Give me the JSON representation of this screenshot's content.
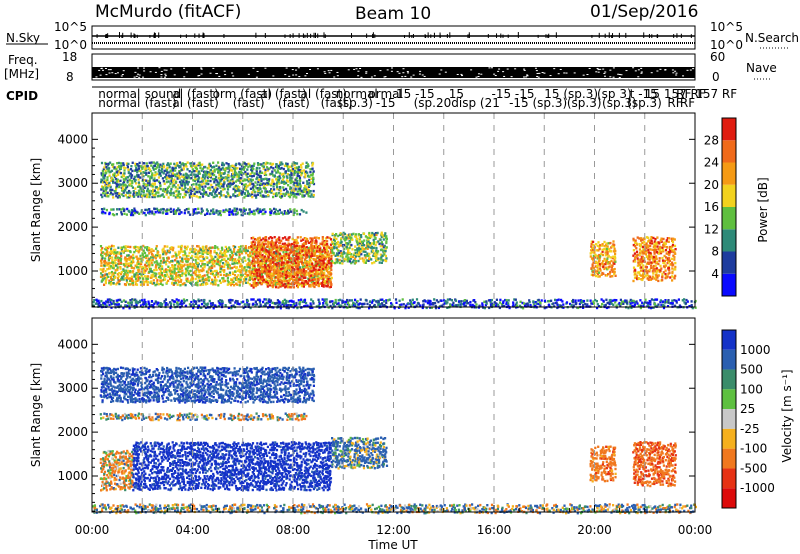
{
  "header": {
    "station": "McMurdo (fitACF)",
    "beam": "Beam 10",
    "date": "01/Sep/2016"
  },
  "strips": {
    "nsky": {
      "label": "N.Sky",
      "ticks": [
        "10^5",
        "10^0"
      ],
      "right_label": "N.Search",
      "right_ticks": [
        "10^5",
        "10^0"
      ]
    },
    "freq": {
      "label_line1": "Freq.",
      "label_line2": "[MHz]",
      "ticks": [
        "18",
        "8"
      ],
      "right_label": "Nave",
      "right_ticks": [
        "60",
        "0"
      ]
    },
    "cpid": {
      "label": "CPID",
      "entries": [
        {
          "t": 0.25,
          "row": 0,
          "text": "normal"
        },
        {
          "t": 0.25,
          "row": 1,
          "text": "normal"
        },
        {
          "t": 2.1,
          "row": 0,
          "text": "sound"
        },
        {
          "t": 2.1,
          "row": 1,
          "text": "(fast)"
        },
        {
          "t": 3.2,
          "row": 0,
          "text": "al (fast)"
        },
        {
          "t": 3.2,
          "row": 1,
          "text": "al (fast)"
        },
        {
          "t": 4.8,
          "row": 0,
          "text": "orm (fast)"
        },
        {
          "t": 5.6,
          "row": 1,
          "text": "(fast)"
        },
        {
          "t": 6.7,
          "row": 0,
          "text": "al (fast)"
        },
        {
          "t": 7.4,
          "row": 1,
          "text": "(fast)"
        },
        {
          "t": 8.3,
          "row": 0,
          "text": "al (fast)"
        },
        {
          "t": 9.1,
          "row": 1,
          "text": "(fast)"
        },
        {
          "t": 9.7,
          "row": 0,
          "text": "normal"
        },
        {
          "t": 9.8,
          "row": 1,
          "text": "(sp.3)"
        },
        {
          "t": 11.0,
          "row": 0,
          "text": "ormal"
        },
        {
          "t": 11.3,
          "row": 1,
          "text": "-15"
        },
        {
          "t": 12.1,
          "row": 0,
          "text": "15 -15"
        },
        {
          "t": 12.8,
          "row": 1,
          "text": "(sp.20"
        },
        {
          "t": 14.2,
          "row": 0,
          "text": "15"
        },
        {
          "t": 14.3,
          "row": 1,
          "text": "disp (21"
        },
        {
          "t": 15.9,
          "row": 0,
          "text": "-15 -15"
        },
        {
          "t": 16.6,
          "row": 1,
          "text": "-15 (sp.3)"
        },
        {
          "t": 18.0,
          "row": 0,
          "text": "15 (sp.3)"
        },
        {
          "t": 18.9,
          "row": 1,
          "text": "(sp.3)"
        },
        {
          "t": 20.1,
          "row": 0,
          "text": "(sp 3)"
        },
        {
          "t": 20.3,
          "row": 1,
          "text": "(sp.3)"
        },
        {
          "t": 21.4,
          "row": 0,
          "text": "t -15"
        },
        {
          "t": 21.3,
          "row": 1,
          "text": "(sp.3)"
        },
        {
          "t": 22.0,
          "row": 0,
          "text": "15 157 RF"
        },
        {
          "t": 22.9,
          "row": 1,
          "text": "RF"
        },
        {
          "t": 23.25,
          "row": 0,
          "text": "RF 157 RF"
        },
        {
          "t": 23.4,
          "row": 1,
          "text": "RF"
        }
      ]
    }
  },
  "axes": {
    "xlabel": "Time UT",
    "xticks": [
      "00:00",
      "04:00",
      "08:00",
      "12:00",
      "16:00",
      "20:00",
      "00:00"
    ],
    "ylabel": "Slant Range [km]",
    "yticks": [
      "1000",
      "2000",
      "3000",
      "4000"
    ]
  },
  "power_colorbar": {
    "label": "Power [dB]",
    "ticks": [
      "4",
      "8",
      "12",
      "16",
      "20",
      "24",
      "28"
    ],
    "colors": [
      "#0a0aff",
      "#1e3c9e",
      "#2e8a78",
      "#5fbf3f",
      "#f2d21e",
      "#f59a14",
      "#f06a1a",
      "#e01c10"
    ]
  },
  "velocity_colorbar": {
    "label": "Velocity [m s⁻¹]",
    "ticks": [
      "1000",
      "500",
      "100",
      "25",
      "-25",
      "-100",
      "-500",
      "-1000"
    ],
    "colors": [
      "#1432c8",
      "#2a5fb0",
      "#3a8c6a",
      "#5ec040",
      "#c8c8c8",
      "#f5b01e",
      "#f0781e",
      "#e63214",
      "#dc0a0a"
    ]
  },
  "chart_data": [
    {
      "type": "heatmap",
      "title": "Power",
      "xlabel": "Time UT",
      "ylabel": "Slant Range [km]",
      "xlim": [
        0,
        24
      ],
      "ylim": [
        180,
        4600
      ],
      "zlabel": "Power [dB]",
      "zlim": [
        0,
        32
      ],
      "regions": [
        {
          "t0": 0.0,
          "t1": 24.0,
          "r0": 180,
          "r1": 380,
          "z": 6
        },
        {
          "t0": 0.3,
          "t1": 9.5,
          "r0": 700,
          "r1": 1600,
          "z": 18
        },
        {
          "t0": 6.3,
          "t1": 9.5,
          "r0": 650,
          "r1": 1800,
          "z": 26
        },
        {
          "t0": 0.3,
          "t1": 8.5,
          "r0": 2300,
          "r1": 2450,
          "z": 9
        },
        {
          "t0": 0.3,
          "t1": 8.8,
          "r0": 2700,
          "r1": 3500,
          "z": 12
        },
        {
          "t0": 9.5,
          "t1": 11.7,
          "r0": 1200,
          "r1": 1900,
          "z": 14
        },
        {
          "t0": 19.8,
          "t1": 20.8,
          "r0": 900,
          "r1": 1700,
          "z": 22
        },
        {
          "t0": 21.5,
          "t1": 23.2,
          "r0": 800,
          "r1": 1800,
          "z": 24
        }
      ]
    },
    {
      "type": "heatmap",
      "title": "Velocity",
      "xlabel": "Time UT",
      "ylabel": "Slant Range [km]",
      "xlim": [
        0,
        24
      ],
      "ylim": [
        180,
        4600
      ],
      "zlabel": "Velocity [m s⁻¹]",
      "zlim": [
        -1000,
        1000
      ],
      "regions": [
        {
          "t0": 0.0,
          "t1": 24.0,
          "r0": 180,
          "r1": 380,
          "z": 50
        },
        {
          "t0": 0.3,
          "t1": 1.6,
          "r0": 700,
          "r1": 1600,
          "z": -120
        },
        {
          "t0": 1.6,
          "t1": 9.5,
          "r0": 700,
          "r1": 1800,
          "z": 700
        },
        {
          "t0": 0.3,
          "t1": 8.5,
          "r0": 2300,
          "r1": 2450,
          "z": 10
        },
        {
          "t0": 0.3,
          "t1": 8.8,
          "r0": 2700,
          "r1": 3500,
          "z": 400
        },
        {
          "t0": 9.5,
          "t1": 11.7,
          "r0": 1200,
          "r1": 1900,
          "z": 150
        },
        {
          "t0": 19.8,
          "t1": 20.8,
          "r0": 900,
          "r1": 1700,
          "z": -300
        },
        {
          "t0": 21.5,
          "t1": 23.2,
          "r0": 800,
          "r1": 1800,
          "z": -400
        }
      ]
    }
  ]
}
